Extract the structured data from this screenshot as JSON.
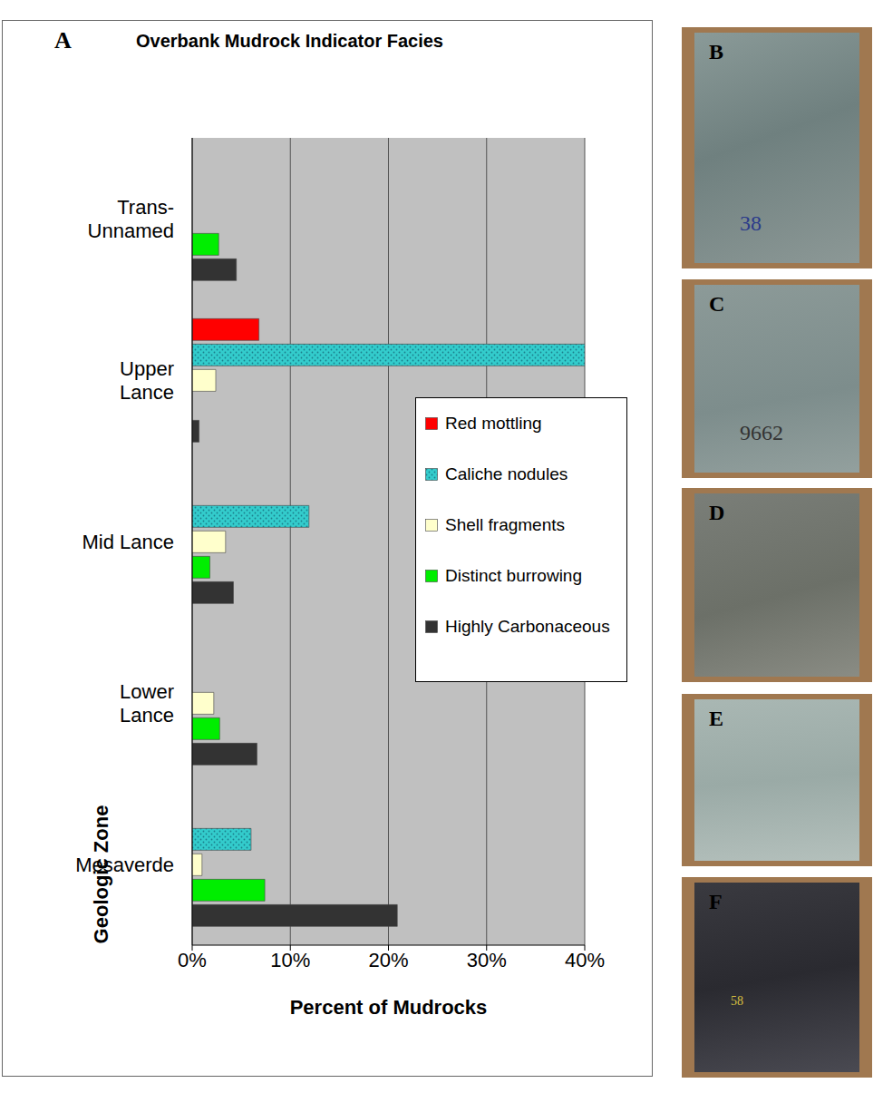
{
  "chart_data": {
    "type": "bar",
    "orientation": "horizontal",
    "title": "Overbank Mudrock Indicator Facies",
    "x_label": "Percent of Mudrocks",
    "y_label": "Geologic Zone",
    "categories": [
      "Trans-Unnamed",
      "Upper Lance",
      "Mid Lance",
      "Lower Lance",
      "Mesaverde"
    ],
    "series": [
      {
        "name": "Red mottling",
        "color": "#ff0000",
        "values": [
          null,
          6.8,
          null,
          null,
          null
        ]
      },
      {
        "name": "Caliche nodules",
        "color": "#33cccc",
        "values": [
          null,
          40,
          11.9,
          null,
          6.0
        ]
      },
      {
        "name": "Shell fragments",
        "color": "#ffffcc",
        "values": [
          null,
          2.4,
          3.4,
          2.2,
          1.0
        ]
      },
      {
        "name": "Distinct burrowing",
        "color": "#00ee00",
        "values": [
          2.7,
          null,
          1.8,
          2.8,
          7.4
        ]
      },
      {
        "name": "Highly Carbonaceous",
        "color": "#333333",
        "values": [
          4.5,
          0.7,
          4.2,
          6.6,
          20.9
        ]
      }
    ],
    "xlim": [
      0,
      40
    ],
    "xticks": [
      {
        "value": 0,
        "label": "0%"
      },
      {
        "value": 10,
        "label": "10%"
      },
      {
        "value": 20,
        "label": "20%"
      },
      {
        "value": 30,
        "label": "30%"
      },
      {
        "value": 40,
        "label": "40%"
      }
    ],
    "grid": true,
    "legend": "right"
  },
  "panel_label": "A",
  "photos": [
    {
      "label": "B",
      "text": "38"
    },
    {
      "label": "C",
      "text": "9662"
    },
    {
      "label": "D"
    },
    {
      "label": "E"
    },
    {
      "label": "F",
      "text": "58"
    }
  ]
}
